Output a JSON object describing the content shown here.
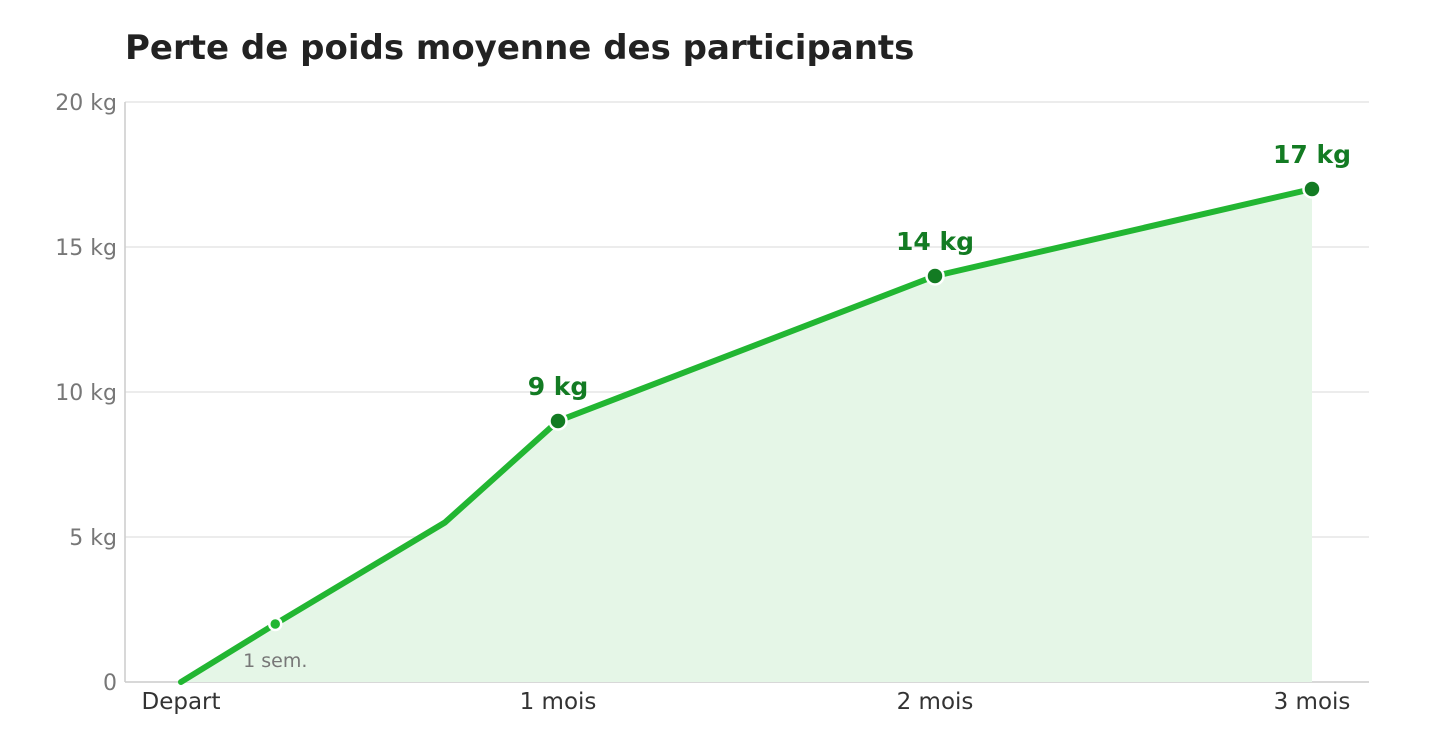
{
  "chart_data": {
    "type": "area",
    "title": "Perte de poids moyenne des participants",
    "xlabel": "",
    "ylabel": "",
    "x_ticks": [
      "Depart",
      "1 mois",
      "2 mois",
      "3 mois"
    ],
    "y_ticks": [
      "0",
      "5 kg",
      "10 kg",
      "15 kg",
      "20 kg"
    ],
    "ylim": [
      0,
      20
    ],
    "grid": true,
    "series": [
      {
        "points": [
          {
            "x": 0,
            "y": 0
          },
          {
            "x": 0.25,
            "y": 2
          },
          {
            "x": 0.7,
            "y": 5.5
          },
          {
            "x": 1,
            "y": 9
          },
          {
            "x": 2,
            "y": 14
          },
          {
            "x": 3,
            "y": 17
          }
        ]
      }
    ],
    "markers": [
      {
        "x": 0.25,
        "y": 2,
        "style": "small"
      },
      {
        "x": 1,
        "y": 9,
        "label": "9 kg"
      },
      {
        "x": 2,
        "y": 14,
        "label": "14 kg"
      },
      {
        "x": 3,
        "y": 17,
        "label": "17 kg"
      }
    ],
    "annotations": [
      {
        "x": 0.25,
        "y": 2,
        "text": "1 sem."
      }
    ],
    "colors": {
      "line": "#22b632",
      "fill": "#e5f6e7",
      "marker": "#137b23",
      "label": "#137b23"
    }
  }
}
